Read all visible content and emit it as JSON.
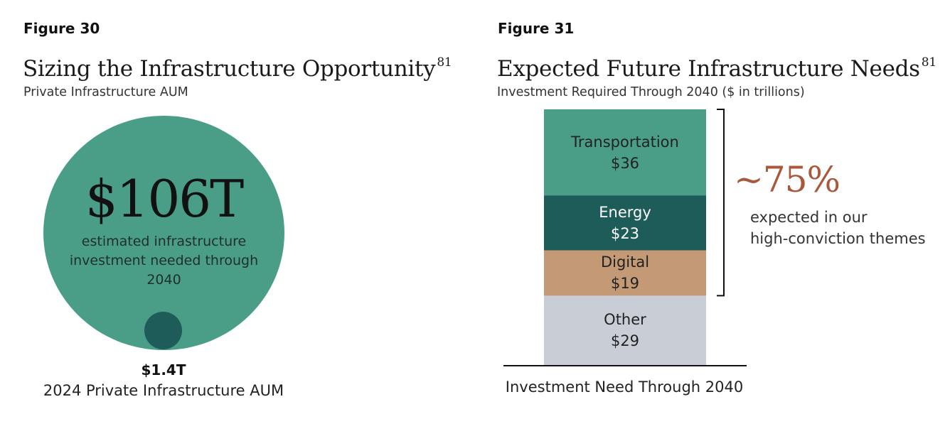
{
  "figure30": {
    "label": "Figure 30",
    "title": "Sizing the Infrastructure Opportunity",
    "footnote": "81",
    "subtitle": "Private Infrastructure AUM",
    "big_value": "$106T",
    "big_caption": "estimated infrastructure investment needed through 2040",
    "small_value": "$1.4T",
    "small_caption": "2024 Private Infrastructure AUM",
    "colors": {
      "big": "#4a9e88",
      "small": "#1d5c58"
    }
  },
  "figure31": {
    "label": "Figure 31",
    "title": "Expected Future Infrastructure Needs",
    "footnote": "81",
    "subtitle": "Investment Required Through 2040 ($ in trillions)",
    "bracket_value": "~75%",
    "bracket_caption_line1": "expected in our",
    "bracket_caption_line2": "high-conviction themes",
    "x_caption": "Investment Need Through 2040"
  },
  "chart_data": [
    {
      "type": "bubble",
      "title": "Sizing the Infrastructure Opportunity",
      "subtitle": "Private Infrastructure AUM",
      "series": [
        {
          "name": "estimated infrastructure investment needed through 2040",
          "value": 106,
          "unit": "$T",
          "label": "$106T",
          "color": "#4a9e88"
        },
        {
          "name": "2024 Private Infrastructure AUM",
          "value": 1.4,
          "unit": "$T",
          "label": "$1.4T",
          "color": "#1d5c58"
        }
      ]
    },
    {
      "type": "bar",
      "stacked": true,
      "title": "Expected Future Infrastructure Needs",
      "subtitle": "Investment Required Through 2040 ($ in trillions)",
      "xlabel": "Investment Need Through 2040",
      "ylabel": "",
      "categories": [
        "Investment Need Through 2040"
      ],
      "series": [
        {
          "name": "Other",
          "values": [
            29
          ],
          "label": "$29",
          "color": "#c9ced6"
        },
        {
          "name": "Digital",
          "values": [
            19
          ],
          "label": "$19",
          "color": "#c49a76"
        },
        {
          "name": "Energy",
          "values": [
            23
          ],
          "label": "$23",
          "color": "#1d5c58"
        },
        {
          "name": "Transportation",
          "values": [
            36
          ],
          "label": "$36",
          "color": "#4a9e88"
        }
      ],
      "annotation": {
        "text": "~75%",
        "caption": "expected in our high-conviction themes",
        "spans": [
          "Transportation",
          "Energy",
          "Digital"
        ]
      }
    }
  ]
}
